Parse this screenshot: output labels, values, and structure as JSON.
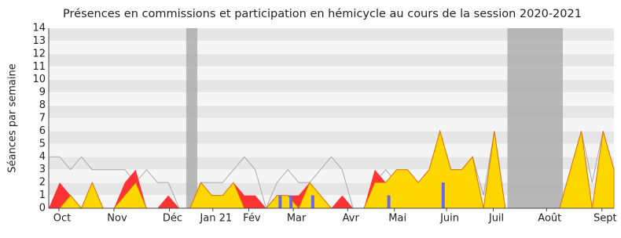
{
  "chart_data": {
    "type": "area",
    "title": "Présences en commissions et participation en hémicycle au cours de la session 2020-2021",
    "y_label": "Séances par semaine",
    "x": [
      0,
      1,
      2,
      3,
      4,
      5,
      6,
      7,
      8,
      9,
      10,
      11,
      12,
      13,
      14,
      15,
      16,
      17,
      18,
      19,
      20,
      21,
      22,
      23,
      24,
      25,
      26,
      27,
      28,
      29,
      30,
      31,
      32,
      33,
      34,
      35,
      36,
      37,
      38,
      39,
      40,
      41,
      42,
      43,
      44,
      45,
      46,
      47,
      48,
      49,
      50,
      51,
      52
    ],
    "xlim": [
      0,
      52
    ],
    "xticks": [
      {
        "value": 0.94,
        "label": "Oct"
      },
      {
        "value": 6.0,
        "label": "Nov"
      },
      {
        "value": 11.1,
        "label": "Déc"
      },
      {
        "value": 15.1,
        "label": "Jan 21"
      },
      {
        "value": 18.4,
        "label": "Fév"
      },
      {
        "value": 22.5,
        "label": "Mar"
      },
      {
        "value": 27.5,
        "label": "Avr"
      },
      {
        "value": 31.8,
        "label": "Mai"
      },
      {
        "value": 36.6,
        "label": "Juin"
      },
      {
        "value": 40.9,
        "label": "Juil"
      },
      {
        "value": 45.8,
        "label": "Août"
      },
      {
        "value": 50.9,
        "label": "Sept"
      }
    ],
    "ylim": [
      0,
      14
    ],
    "yticks": [
      0,
      1,
      2,
      3,
      4,
      5,
      6,
      7,
      8,
      9,
      10,
      11,
      12,
      13,
      14
    ],
    "shaded": [
      [
        12.65,
        13.67
      ],
      [
        42.2,
        47.3
      ]
    ],
    "series": [
      {
        "color": "#ff3333",
        "values": [
          0,
          2,
          1,
          0,
          2,
          0,
          0,
          2,
          3,
          0,
          0,
          1,
          0,
          0,
          2,
          1,
          1,
          2,
          1,
          1,
          0,
          1,
          1,
          1,
          2,
          1,
          0,
          1,
          0,
          0,
          3,
          2,
          3,
          3,
          2,
          3,
          6,
          3,
          3,
          4,
          0,
          6,
          0,
          0,
          0,
          0,
          0,
          0,
          3,
          6,
          0,
          6,
          3
        ]
      },
      {
        "color": "#ffd700",
        "values": [
          0,
          0,
          1,
          0,
          2,
          0,
          0,
          1,
          2,
          0,
          0,
          0,
          0,
          0,
          2,
          1,
          1,
          2,
          0,
          0,
          0,
          1,
          1,
          0,
          2,
          1,
          0,
          0,
          0,
          0,
          2,
          2,
          3,
          3,
          2,
          3,
          6,
          3,
          3,
          4,
          0,
          6,
          0,
          0,
          0,
          0,
          0,
          0,
          3,
          6,
          0,
          6,
          3
        ]
      },
      {
        "color": "#aaaaaa",
        "type": "line",
        "values": [
          4,
          4,
          3,
          4,
          3,
          3,
          3,
          3,
          2,
          3,
          2,
          2,
          0,
          0,
          2,
          2,
          2,
          3,
          4,
          3,
          0,
          2,
          3,
          2,
          2,
          3,
          4,
          3,
          0,
          0,
          2,
          3,
          2,
          3,
          2,
          3,
          6,
          3,
          3,
          4,
          1,
          6,
          0,
          0,
          0,
          0,
          0,
          0,
          3,
          6,
          2,
          6,
          3
        ]
      },
      {
        "color": "#6666ee",
        "type": "bar",
        "values": [
          0,
          0,
          0,
          0,
          0,
          0,
          0,
          0,
          0,
          0,
          0,
          0,
          0,
          0,
          0,
          0,
          0,
          0,
          0,
          0,
          0,
          1,
          1,
          0,
          1,
          0,
          0,
          0,
          0,
          0,
          0,
          1,
          0,
          0,
          0,
          0,
          2,
          0,
          0,
          0,
          0,
          0,
          0,
          0,
          0,
          0,
          0,
          0,
          0,
          0,
          0,
          0,
          0
        ]
      }
    ]
  }
}
